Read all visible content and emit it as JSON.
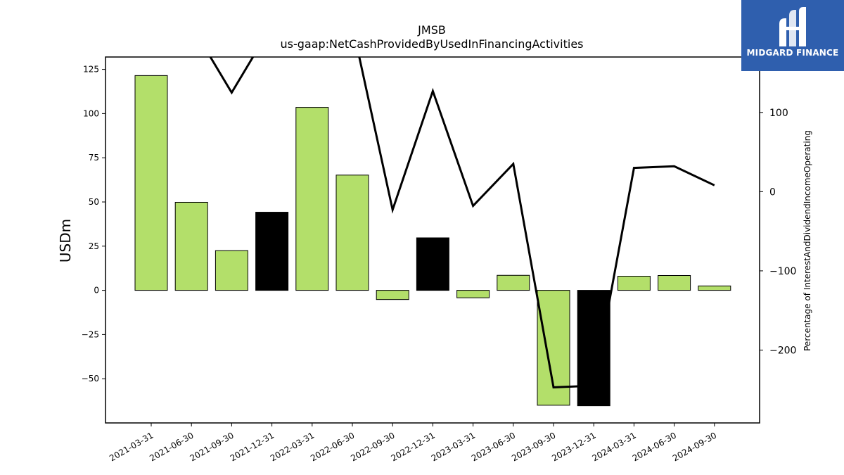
{
  "chart_data": {
    "type": "bar",
    "title": "JMSB",
    "subtitle": "us-gaap:NetCashProvidedByUsedInFinancingActivities",
    "ylabel": "USDm",
    "y2label": "Percentage of InterestAndDividendIncomeOperating",
    "categories": [
      "2021-03-31",
      "2021-06-30",
      "2021-09-30",
      "2021-12-31",
      "2022-03-31",
      "2022-06-30",
      "2022-09-30",
      "2022-12-31",
      "2023-03-31",
      "2023-06-30",
      "2023-09-30",
      "2023-12-31",
      "2024-03-31",
      "2024-06-30",
      "2024-09-30"
    ],
    "values": [
      121.5,
      49.8,
      22.5,
      44.2,
      103.5,
      65.2,
      -5.2,
      29.7,
      -4.2,
      8.5,
      -65.0,
      -65.3,
      8.0,
      8.4,
      2.5
    ],
    "bar_colors": [
      "#b3df6a",
      "#b3df6a",
      "#b3df6a",
      "#000000",
      "#b3df6a",
      "#b3df6a",
      "#b3df6a",
      "#000000",
      "#b3df6a",
      "#b3df6a",
      "#b3df6a",
      "#000000",
      "#b3df6a",
      "#b3df6a",
      "#b3df6a"
    ],
    "line_values": [
      null,
      210,
      125,
      210,
      null,
      210,
      -23,
      127,
      -18,
      35,
      -247,
      -245,
      30,
      32,
      8
    ],
    "ylim": [
      -75,
      132
    ],
    "y2lim": [
      -292,
      170
    ],
    "yticks": [
      125,
      100,
      75,
      50,
      25,
      0,
      -25,
      -50
    ],
    "y2ticks": [
      100,
      0,
      -100,
      -200
    ],
    "grid": false,
    "legend": "none"
  },
  "logo": {
    "text": "MIDGARD FINANCE",
    "color": "#2f5fae"
  }
}
